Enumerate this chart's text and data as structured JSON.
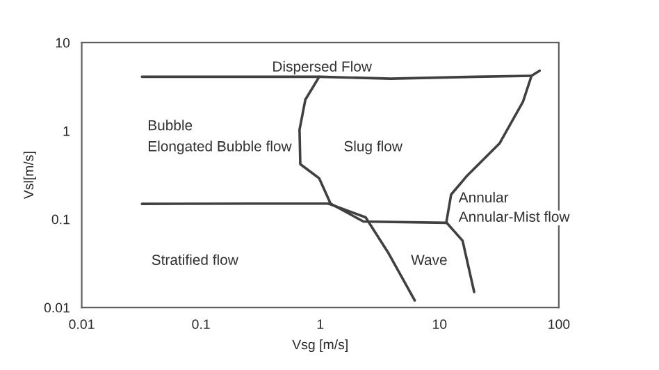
{
  "chart_data": {
    "type": "line",
    "xlabel": "Vsg [m/s]",
    "ylabel": "Vsl[m/s]",
    "log": "xy",
    "xlim": [
      0.01,
      100
    ],
    "ylim": [
      0.01,
      10
    ],
    "xticks": [
      0.01,
      0.1,
      1,
      10,
      100
    ],
    "yticks": [
      0.01,
      0.1,
      1,
      10
    ],
    "grid": false,
    "marker": "none",
    "line_style": "solid",
    "series": [
      {
        "color": "#404040",
        "x": [
          0.032,
          0.39,
          1.0,
          3.9,
          20,
          59,
          69
        ],
        "values": [
          4.1,
          4.1,
          4.1,
          3.9,
          4.1,
          4.2,
          4.8
        ]
      },
      {
        "color": "#404040",
        "x": [
          0.032,
          0.3,
          1.22,
          2.3,
          11.4
        ],
        "values": [
          0.149,
          0.15,
          0.15,
          0.094,
          0.091
        ]
      },
      {
        "color": "#404040",
        "x": [
          1.17,
          2.4,
          3.7,
          6.2
        ],
        "values": [
          0.15,
          0.105,
          0.042,
          0.012
        ]
      },
      {
        "color": "#404040",
        "x": [
          0.98,
          0.75,
          0.67,
          0.68,
          0.98,
          1.22
        ],
        "values": [
          4.1,
          2.26,
          1.03,
          0.42,
          0.29,
          0.15
        ]
      },
      {
        "color": "#404040",
        "x": [
          59,
          50,
          31.8,
          17,
          12.5,
          11.4,
          15.6,
          19.5
        ],
        "values": [
          4.2,
          2.13,
          0.72,
          0.31,
          0.19,
          0.092,
          0.057,
          0.015
        ]
      }
    ],
    "annotations": [
      "Dispersed Flow",
      "Bubble",
      "Elongated Bubble flow",
      "Slug flow",
      "Annular",
      "Annular-Mist flow",
      "Wave",
      "Stratified flow"
    ]
  }
}
